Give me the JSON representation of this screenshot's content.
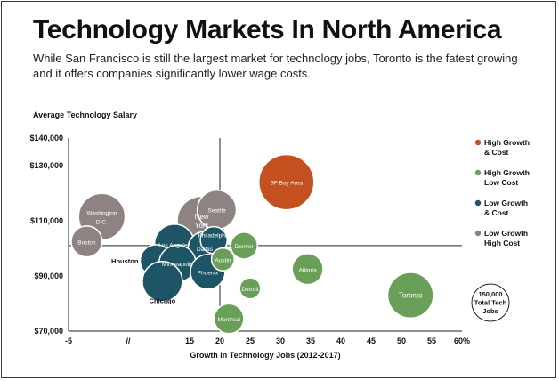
{
  "chart_data": {
    "type": "scatter",
    "title": "Technology Markets In North America",
    "subtitle": "While San Francisco is still the largest market for technology jobs, Toronto is the fatest growing and it offers companies significantly lower wage costs.",
    "xlabel": "Growth in Technology Jobs (2012-2017)",
    "ylabel": "Average Technology Salary",
    "x_ticks": [
      "-5",
      "//",
      "15",
      "20",
      "25",
      "30",
      "35",
      "40",
      "45",
      "50",
      "55",
      "60%"
    ],
    "y_ticks": [
      "$140,000",
      "$130,000",
      "$110,000",
      "$90,000",
      "$70,000"
    ],
    "x_tick_values": [
      -5,
      15,
      20,
      25,
      30,
      35,
      40,
      45,
      50,
      55,
      60
    ],
    "y_tick_values": [
      140000,
      130000,
      110000,
      90000,
      70000
    ],
    "xlim": [
      -5,
      60
    ],
    "ylim": [
      70000,
      140000
    ],
    "axis_break": "//",
    "divider": {
      "x": 20,
      "y": 101000
    },
    "legend_placement": "right",
    "legend": [
      {
        "name": "High Growth & Cost",
        "lines": [
          "High Growth",
          "& Cost"
        ],
        "color": "#c4501f"
      },
      {
        "name": "High Growth Low Cost",
        "lines": [
          "High Growth",
          "Low Cost"
        ],
        "color": "#6a9f58"
      },
      {
        "name": "Low Growth & Cost",
        "lines": [
          "Low Growth",
          "& Cost"
        ],
        "color": "#1d5566"
      },
      {
        "name": "Low Growth High Cost",
        "lines": [
          "Low Growth",
          "High Cost"
        ],
        "color": "#8e8383"
      }
    ],
    "size_key": {
      "lines": [
        "150,000",
        "Total Tech",
        "Jobs"
      ],
      "jobs": 150000
    },
    "points": [
      {
        "label": [
          "SF Bay Area"
        ],
        "x": 31,
        "y": 124000,
        "jobs": 380000,
        "group": "High Growth & Cost"
      },
      {
        "label": [
          "Washington",
          "D.C."
        ],
        "x": 0.5,
        "y": 111500,
        "jobs": 270000,
        "group": "Low Growth High Cost"
      },
      {
        "label": [
          "Boston"
        ],
        "x": -2,
        "y": 102500,
        "jobs": 120000,
        "group": "Low Growth High Cost"
      },
      {
        "label": [
          "New",
          "York"
        ],
        "x": 17,
        "y": 110000,
        "jobs": 300000,
        "group": "Low Growth High Cost"
      },
      {
        "label": [
          "Seattle"
        ],
        "x": 19.5,
        "y": 114000,
        "jobs": 190000,
        "group": "Low Growth High Cost"
      },
      {
        "label": [
          "Los Angeles"
        ],
        "x": 12.5,
        "y": 101500,
        "jobs": 200000,
        "group": "Low Growth & Cost"
      },
      {
        "label": [
          "Dallas"
        ],
        "x": 17.5,
        "y": 100000,
        "jobs": 140000,
        "group": "Low Growth & Cost"
      },
      {
        "label": [
          "Philadelphia"
        ],
        "x": 19,
        "y": 103000,
        "jobs": 90000,
        "group": "Low Growth & Cost"
      },
      {
        "label": [
          "Houston"
        ],
        "x": 9.5,
        "y": 95500,
        "jobs": 130000,
        "group": "Low Growth & Cost"
      },
      {
        "label": [
          "Minneapolis"
        ],
        "x": 13,
        "y": 94500,
        "jobs": 170000,
        "group": "Low Growth & Cost"
      },
      {
        "label": [
          "Chicago"
        ],
        "x": 10.5,
        "y": 88000,
        "jobs": 200000,
        "group": "Low Growth & Cost"
      },
      {
        "label": [
          "Phoenix"
        ],
        "x": 18,
        "y": 91500,
        "jobs": 150000,
        "group": "Low Growth & Cost"
      },
      {
        "label": [
          "Denver"
        ],
        "x": 24,
        "y": 101000,
        "jobs": 90000,
        "group": "High Growth Low Cost"
      },
      {
        "label": [
          "Austin"
        ],
        "x": 20.5,
        "y": 96000,
        "jobs": 65000,
        "group": "High Growth Low Cost"
      },
      {
        "label": [
          "Atlanta"
        ],
        "x": 34.5,
        "y": 92500,
        "jobs": 120000,
        "group": "High Growth Low Cost"
      },
      {
        "label": [
          "Detroit"
        ],
        "x": 25,
        "y": 85500,
        "jobs": 55000,
        "group": "High Growth Low Cost"
      },
      {
        "label": [
          "Montreal"
        ],
        "x": 21.5,
        "y": 74500,
        "jobs": 110000,
        "group": "High Growth Low Cost"
      },
      {
        "label": [
          "Toronto"
        ],
        "x": 51.5,
        "y": 83000,
        "jobs": 260000,
        "group": "High Growth Low Cost"
      }
    ]
  }
}
